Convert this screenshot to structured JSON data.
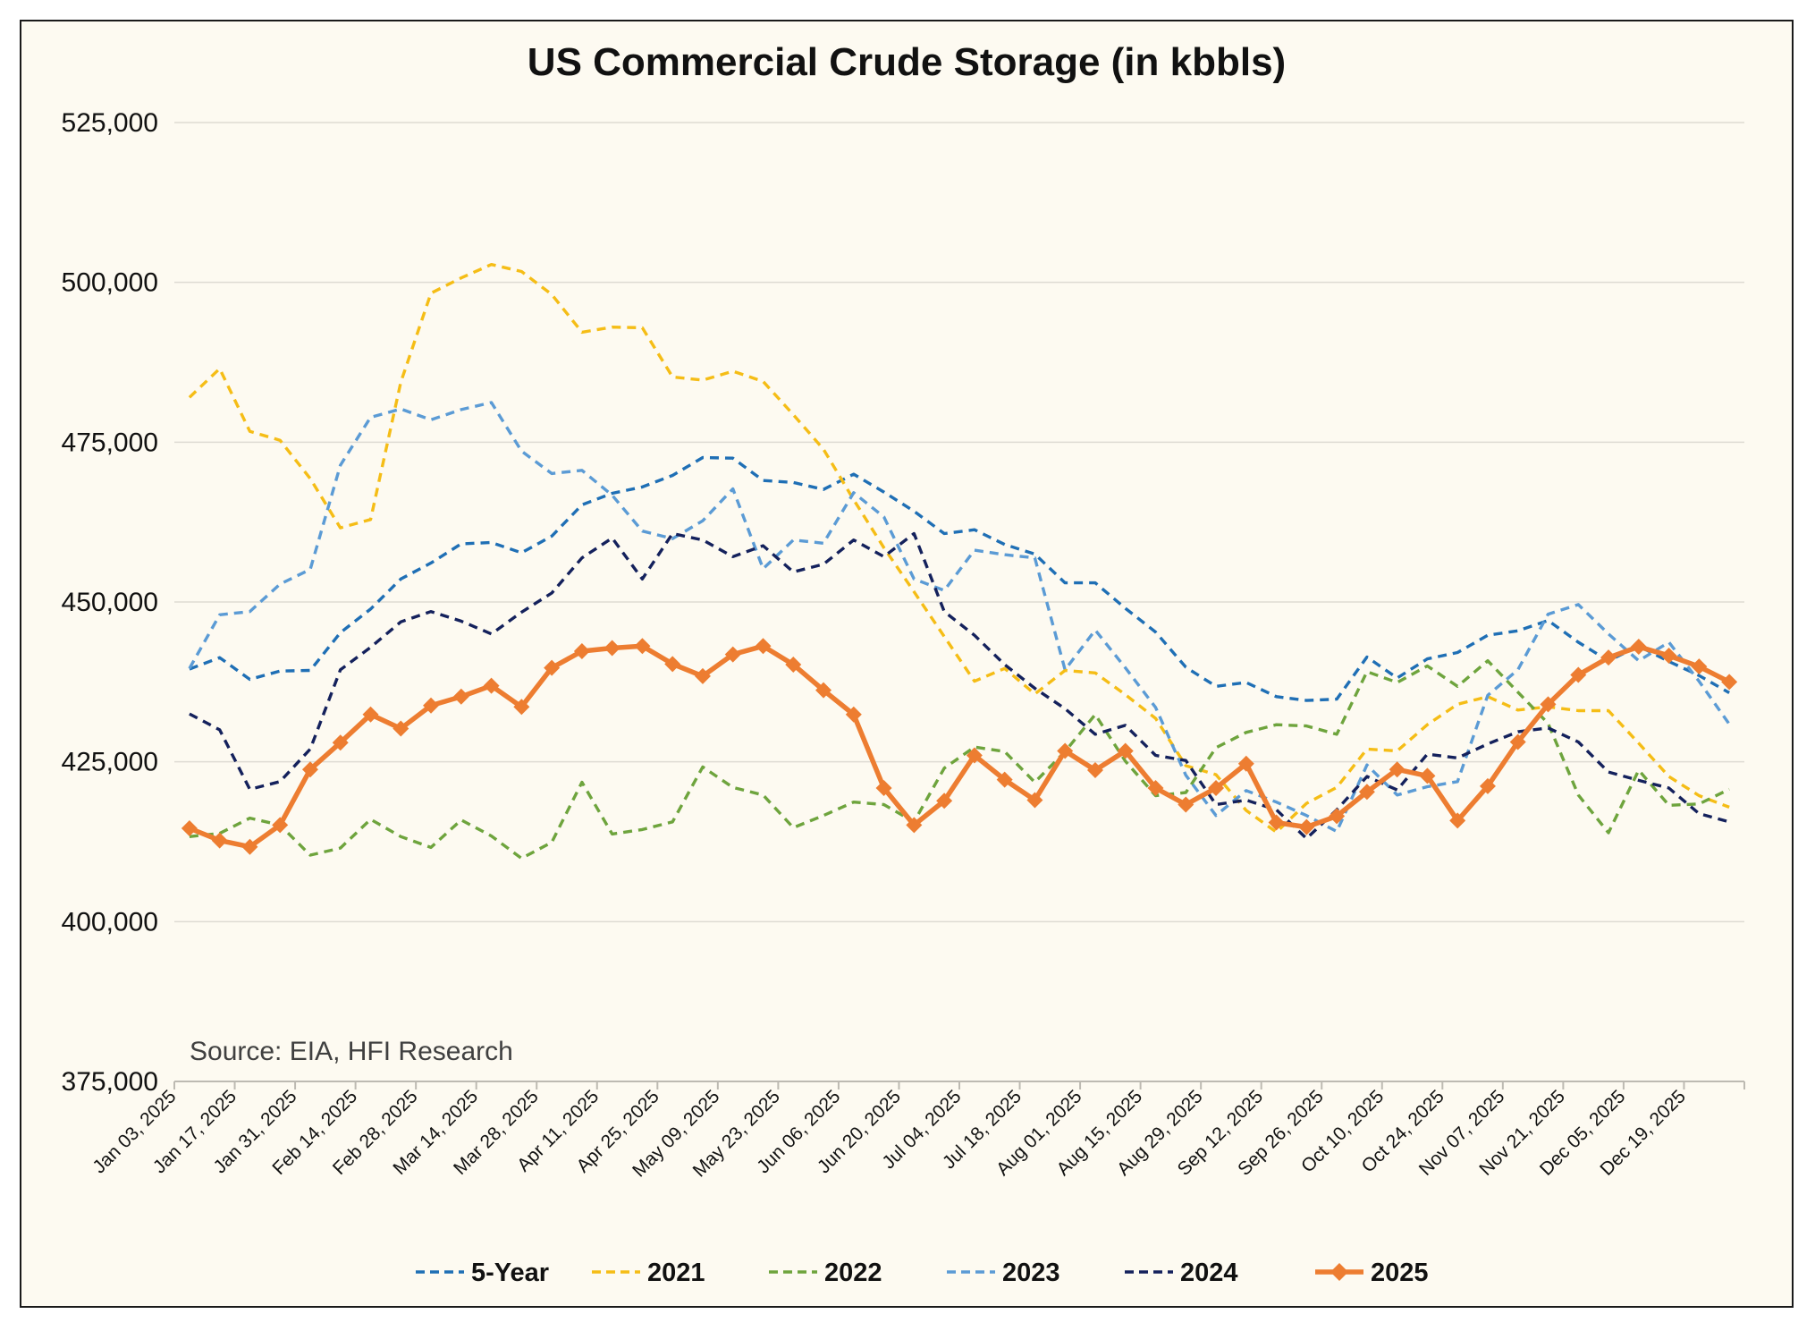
{
  "chart_data": {
    "type": "line",
    "title": "US Commercial Crude Storage (in kbbls)",
    "source": "Source: EIA, HFI Research",
    "ylim": [
      375000,
      525000
    ],
    "yticks": [
      375000,
      400000,
      425000,
      450000,
      475000,
      500000,
      525000
    ],
    "ytick_labels": [
      "375,000",
      "400,000",
      "425,000",
      "450,000",
      "475,000",
      "500,000",
      "525,000"
    ],
    "x_tick_labels": [
      "Jan 03, 2025",
      "Jan 17, 2025",
      "Jan 31, 2025",
      "Feb 14, 2025",
      "Feb 28, 2025",
      "Mar 14, 2025",
      "Mar 28, 2025",
      "Apr 11, 2025",
      "Apr 25, 2025",
      "May 09, 2025",
      "May 23, 2025",
      "Jun 06, 2025",
      "Jun 20, 2025",
      "Jul 04, 2025",
      "Jul 18, 2025",
      "Aug 01, 2025",
      "Aug 15, 2025",
      "Aug 29, 2025",
      "Sep 12, 2025",
      "Sep 26, 2025",
      "Oct 10, 2025",
      "Oct 24, 2025",
      "Nov 07, 2025",
      "Nov 21, 2025",
      "Dec 05, 2025",
      "Dec 19, 2025"
    ],
    "x_weeks": 52,
    "legend_position": "bottom",
    "grid": true,
    "series": [
      {
        "name": "5-Year",
        "color": "#1f6fb5",
        "style": "dashed",
        "marker": "none",
        "values": [
          439500,
          441300,
          437900,
          439200,
          439300,
          445200,
          448900,
          453600,
          456100,
          459100,
          459300,
          457700,
          460300,
          465200,
          467000,
          468000,
          469800,
          472600,
          472500,
          469000,
          468700,
          467600,
          470000,
          467200,
          464200,
          460700,
          461300,
          459000,
          457500,
          453000,
          453000,
          449000,
          445300,
          439800,
          436800,
          437400,
          435200,
          434600,
          434800,
          441400,
          438100,
          441100,
          442100,
          444800,
          445500,
          447100,
          443700,
          440800,
          443100,
          440700,
          438500,
          435800
        ]
      },
      {
        "name": "2021",
        "color": "#f5bd16",
        "style": "dashed",
        "marker": "none",
        "values": [
          482000,
          486500,
          476700,
          475300,
          469300,
          461600,
          462900,
          484400,
          498300,
          500700,
          502800,
          501700,
          498100,
          492200,
          493000,
          492900,
          485200,
          484700,
          486100,
          484500,
          479300,
          473900,
          466000,
          458500,
          451600,
          444600,
          437600,
          439600,
          435600,
          439300,
          438900,
          435500,
          431800,
          424400,
          423000,
          417400,
          414000,
          418500,
          421000,
          427000,
          426700,
          430800,
          434000,
          435200,
          433100,
          433600,
          433000,
          433000,
          427900,
          422700,
          419700,
          417900
        ]
      },
      {
        "name": "2022",
        "color": "#6ea43d",
        "style": "dashed",
        "marker": "none",
        "values": [
          413300,
          413800,
          416200,
          415100,
          410400,
          411500,
          416000,
          413300,
          411600,
          415900,
          413400,
          409900,
          412400,
          421800,
          413700,
          414400,
          415600,
          424200,
          421000,
          419800,
          414700,
          416600,
          418700,
          418300,
          415600,
          424000,
          427300,
          426600,
          421800,
          426600,
          432400,
          425100,
          419700,
          420200,
          427200,
          429600,
          430800,
          430600,
          429300,
          439100,
          437400,
          440000,
          436800,
          440800,
          435900,
          431000,
          419800,
          413900,
          423700,
          418200,
          418400,
          420700
        ]
      },
      {
        "name": "2023",
        "color": "#5b9bd5",
        "style": "dashed",
        "marker": "none",
        "values": [
          439600,
          448000,
          448500,
          452800,
          455100,
          471400,
          478900,
          480200,
          478500,
          480100,
          481200,
          473600,
          470100,
          470600,
          466700,
          461100,
          459900,
          462700,
          467700,
          455200,
          459700,
          459200,
          467100,
          463300,
          453600,
          451800,
          458100,
          457400,
          456900,
          439400,
          445600,
          439700,
          433500,
          422900,
          416600,
          420500,
          418700,
          416600,
          414100,
          424500,
          419800,
          421100,
          421900,
          435400,
          439400,
          448100,
          449600,
          445000,
          440800,
          443700,
          437600,
          430900
        ]
      },
      {
        "name": "2024",
        "color": "#14215c",
        "style": "dashed",
        "marker": "none",
        "values": [
          432500,
          430000,
          420700,
          421900,
          427000,
          439400,
          442900,
          446900,
          448500,
          447000,
          445000,
          448400,
          451400,
          456900,
          460000,
          453600,
          460700,
          459700,
          457100,
          458800,
          454700,
          455900,
          459700,
          457100,
          460700,
          448500,
          444800,
          440200,
          436500,
          433300,
          429300,
          430700,
          426000,
          425200,
          418300,
          419000,
          417500,
          413000,
          417500,
          422700,
          420600,
          426200,
          425600,
          427800,
          429700,
          430300,
          428100,
          423400,
          422100,
          420900,
          416900,
          415600
        ]
      },
      {
        "name": "2025",
        "color": "#ed7d31",
        "style": "solid",
        "marker": "diamond",
        "values": [
          414600,
          412700,
          411700,
          415100,
          423800,
          428000,
          432400,
          430200,
          433800,
          435200,
          436900,
          433600,
          439700,
          442300,
          442800,
          443100,
          440300,
          438400,
          441800,
          443100,
          440200,
          436200,
          432400,
          420900,
          415100,
          418900,
          426000,
          422200,
          419000,
          426700,
          423700,
          426700,
          420900,
          418300,
          420900,
          424700,
          415500,
          414800,
          416500,
          420300,
          423800,
          422800,
          415800,
          421200,
          428100,
          434000,
          438600,
          441300,
          443000,
          441600,
          439900,
          437500
        ]
      }
    ]
  }
}
